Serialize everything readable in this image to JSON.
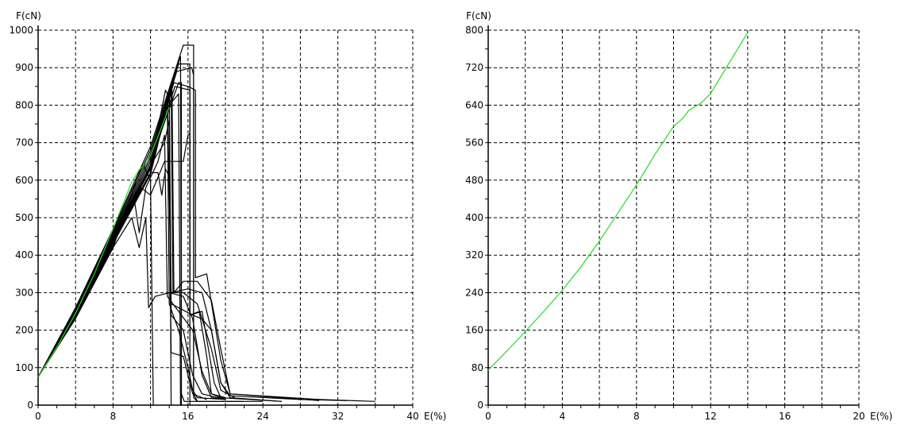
{
  "chart_data": [
    {
      "type": "line",
      "xlabel": "E(%)",
      "ylabel": "F(cN)",
      "xlim": [
        0,
        40
      ],
      "ylim": [
        0,
        1000
      ],
      "x_ticks": [
        0,
        8,
        16,
        24,
        32,
        40
      ],
      "y_ticks": [
        0,
        100,
        200,
        300,
        400,
        500,
        600,
        700,
        800,
        900,
        1000
      ],
      "grid": true,
      "colors": {
        "black": "#000000",
        "green": "#22dd22"
      },
      "series": [
        {
          "color": "black",
          "points": [
            [
              0,
              75
            ],
            [
              4,
              260
            ],
            [
              8,
              470
            ],
            [
              12,
              690
            ],
            [
              15.5,
              960
            ],
            [
              16.6,
              960
            ],
            [
              16.6,
              30
            ],
            [
              17,
              10
            ],
            [
              24,
              10
            ]
          ]
        },
        {
          "color": "black",
          "points": [
            [
              0,
              75
            ],
            [
              4,
              255
            ],
            [
              8,
              465
            ],
            [
              12,
              680
            ],
            [
              15.2,
              930
            ],
            [
              15.3,
              30
            ],
            [
              15.6,
              10
            ],
            [
              22,
              10
            ]
          ]
        },
        {
          "color": "black",
          "points": [
            [
              0,
              75
            ],
            [
              4,
              250
            ],
            [
              8,
              460
            ],
            [
              12,
              670
            ],
            [
              15,
              910
            ],
            [
              16.2,
              910
            ],
            [
              16.2,
              240
            ],
            [
              17.5,
              250
            ],
            [
              18.8,
              60
            ],
            [
              19.5,
              20
            ],
            [
              26,
              10
            ]
          ]
        },
        {
          "color": "black",
          "points": [
            [
              0,
              75
            ],
            [
              4,
              245
            ],
            [
              8,
              455
            ],
            [
              12,
              660
            ],
            [
              14.5,
              860
            ],
            [
              16,
              850
            ],
            [
              16.8,
              840
            ],
            [
              16.8,
              340
            ],
            [
              18,
              350
            ],
            [
              19.5,
              120
            ],
            [
              20.5,
              30
            ],
            [
              30,
              15
            ],
            [
              36,
              10
            ]
          ]
        },
        {
          "color": "black",
          "points": [
            [
              0,
              75
            ],
            [
              4,
              245
            ],
            [
              8,
              450
            ],
            [
              12,
              650
            ],
            [
              14.3,
              840
            ],
            [
              14.5,
              300
            ],
            [
              15.5,
              330
            ],
            [
              17,
              330
            ],
            [
              18.5,
              280
            ],
            [
              19.5,
              150
            ],
            [
              20.5,
              30
            ],
            [
              30,
              12
            ]
          ]
        },
        {
          "color": "black",
          "points": [
            [
              0,
              75
            ],
            [
              4,
              240
            ],
            [
              8,
              445
            ],
            [
              12,
              640
            ],
            [
              13.6,
              840
            ],
            [
              13.8,
              830
            ],
            [
              14.2,
              300
            ],
            [
              16,
              310
            ],
            [
              17.5,
              300
            ],
            [
              18.5,
              200
            ],
            [
              19.5,
              60
            ],
            [
              20.5,
              25
            ],
            [
              28,
              15
            ],
            [
              33,
              12
            ]
          ]
        },
        {
          "color": "black",
          "points": [
            [
              0,
              75
            ],
            [
              4,
              240
            ],
            [
              8,
              440
            ],
            [
              12,
              630
            ],
            [
              14.2,
              850
            ],
            [
              14.4,
              300
            ],
            [
              15.5,
              300
            ],
            [
              17,
              270
            ],
            [
              18.5,
              150
            ],
            [
              19.5,
              40
            ],
            [
              21,
              20
            ]
          ]
        },
        {
          "color": "black",
          "points": [
            [
              0,
              75
            ],
            [
              4,
              238
            ],
            [
              8,
              440
            ],
            [
              12,
              630
            ],
            [
              14,
              835
            ],
            [
              14.2,
              240
            ],
            [
              15.5,
              200
            ],
            [
              16.5,
              80
            ],
            [
              17.5,
              30
            ],
            [
              20,
              15
            ]
          ]
        },
        {
          "color": "black",
          "points": [
            [
              0,
              75
            ],
            [
              4,
              236
            ],
            [
              8,
              435
            ],
            [
              12,
              620
            ],
            [
              14,
              820
            ],
            [
              14.2,
              0
            ]
          ]
        },
        {
          "color": "black",
          "points": [
            [
              0,
              75
            ],
            [
              4,
              236
            ],
            [
              8,
              430
            ],
            [
              12,
              615
            ],
            [
              13.8,
              800
            ],
            [
              14,
              270
            ],
            [
              15,
              200
            ],
            [
              16,
              100
            ],
            [
              16.5,
              40
            ],
            [
              17,
              20
            ],
            [
              20,
              15
            ]
          ]
        },
        {
          "color": "black",
          "points": [
            [
              0,
              75
            ],
            [
              4,
              233
            ],
            [
              8,
              425
            ],
            [
              10.2,
              560
            ],
            [
              10.8,
              460
            ],
            [
              11.5,
              580
            ],
            [
              12.8,
              650
            ],
            [
              13.5,
              720
            ],
            [
              13.8,
              290
            ],
            [
              15,
              250
            ],
            [
              16.5,
              200
            ],
            [
              17.5,
              90
            ],
            [
              18.5,
              30
            ],
            [
              20,
              20
            ]
          ]
        },
        {
          "color": "black",
          "points": [
            [
              0,
              75
            ],
            [
              4,
              232
            ],
            [
              8,
              420
            ],
            [
              10,
              500
            ],
            [
              10.8,
              420
            ],
            [
              11.5,
              500
            ],
            [
              11.8,
              260
            ],
            [
              12.5,
              290
            ],
            [
              14,
              300
            ],
            [
              15.5,
              290
            ],
            [
              16.5,
              230
            ],
            [
              17.5,
              80
            ],
            [
              18.5,
              20
            ],
            [
              20,
              15
            ]
          ]
        },
        {
          "color": "black",
          "points": [
            [
              0,
              75
            ],
            [
              4,
              231
            ],
            [
              8,
              420
            ],
            [
              10.5,
              600
            ],
            [
              11.2,
              640
            ],
            [
              12,
              600
            ],
            [
              12.3,
              0
            ]
          ]
        },
        {
          "color": "black",
          "points": [
            [
              0,
              75
            ],
            [
              4,
              232
            ],
            [
              8,
              440
            ],
            [
              11,
              580
            ],
            [
              12,
              560
            ],
            [
              13.5,
              650
            ],
            [
              15.5,
              650
            ],
            [
              16,
              720
            ],
            [
              16.2,
              725
            ],
            [
              16.2,
              240
            ],
            [
              17.2,
              250
            ],
            [
              18,
              130
            ],
            [
              18.5,
              30
            ],
            [
              20,
              15
            ]
          ]
        },
        {
          "color": "black",
          "points": [
            [
              0,
              75
            ],
            [
              4,
              233
            ],
            [
              8,
              440
            ],
            [
              12,
              620
            ],
            [
              12.8,
              620
            ],
            [
              13.2,
              560
            ],
            [
              13.6,
              630
            ],
            [
              14,
              610
            ],
            [
              14.2,
              140
            ],
            [
              15.5,
              130
            ],
            [
              16.5,
              30
            ],
            [
              18,
              15
            ]
          ]
        },
        {
          "color": "black",
          "points": [
            [
              0,
              75
            ],
            [
              4,
              235
            ],
            [
              8,
              445
            ],
            [
              12,
              635
            ],
            [
              14,
              800
            ],
            [
              15,
              830
            ],
            [
              15.2,
              0
            ]
          ]
        },
        {
          "color": "black",
          "points": [
            [
              0,
              75
            ],
            [
              4,
              235
            ],
            [
              8,
              445
            ],
            [
              12,
              640
            ],
            [
              14.6,
              850
            ],
            [
              16.2,
              840
            ],
            [
              16.2,
              0
            ]
          ]
        },
        {
          "color": "black",
          "points": [
            [
              0,
              75
            ],
            [
              4,
              238
            ],
            [
              8,
              450
            ],
            [
              12,
              650
            ],
            [
              15,
              860
            ],
            [
              15.3,
              860
            ],
            [
              15.3,
              0
            ]
          ]
        },
        {
          "color": "black",
          "points": [
            [
              0,
              75
            ],
            [
              4,
              240
            ],
            [
              8,
              455
            ],
            [
              12,
              660
            ],
            [
              14.8,
              890
            ],
            [
              16.4,
              900
            ],
            [
              16.6,
              880
            ],
            [
              16.6,
              20
            ],
            [
              17,
              10
            ]
          ]
        },
        {
          "color": "black",
          "points": [
            [
              0,
              75
            ],
            [
              4,
              238
            ],
            [
              8,
              450
            ],
            [
              12,
              640
            ],
            [
              13.5,
              700
            ],
            [
              14,
              760
            ],
            [
              14.2,
              270
            ],
            [
              15,
              260
            ],
            [
              16.5,
              240
            ],
            [
              17.5,
              230
            ],
            [
              18.5,
              200
            ],
            [
              19.5,
              60
            ],
            [
              20.5,
              20
            ],
            [
              26,
              10
            ]
          ]
        },
        {
          "color": "green",
          "points": [
            [
              0,
              75
            ],
            [
              2,
              155
            ],
            [
              4,
              245
            ],
            [
              6,
              350
            ],
            [
              8,
              470
            ],
            [
              10,
              595
            ],
            [
              10.8,
              628
            ],
            [
              11.5,
              645
            ],
            [
              12,
              665
            ],
            [
              14,
              795
            ]
          ]
        }
      ]
    },
    {
      "type": "line",
      "xlabel": "E(%)",
      "ylabel": "F(cN)",
      "xlim": [
        0,
        20
      ],
      "ylim": [
        0,
        800
      ],
      "x_ticks": [
        0,
        4,
        8,
        12,
        16,
        20
      ],
      "y_ticks": [
        0,
        80,
        160,
        240,
        320,
        400,
        480,
        560,
        640,
        720,
        800
      ],
      "grid": true,
      "series": [
        {
          "color": "green",
          "points": [
            [
              0,
              75
            ],
            [
              1,
              115
            ],
            [
              2,
              157
            ],
            [
              3,
              200
            ],
            [
              4,
              245
            ],
            [
              5,
              295
            ],
            [
              6,
              350
            ],
            [
              7,
              410
            ],
            [
              8,
              470
            ],
            [
              9,
              535
            ],
            [
              10,
              595
            ],
            [
              10.5,
              612
            ],
            [
              10.8,
              628
            ],
            [
              11.2,
              638
            ],
            [
              11.5,
              645
            ],
            [
              12,
              665
            ],
            [
              13,
              730
            ],
            [
              14,
              795
            ]
          ]
        }
      ]
    }
  ]
}
